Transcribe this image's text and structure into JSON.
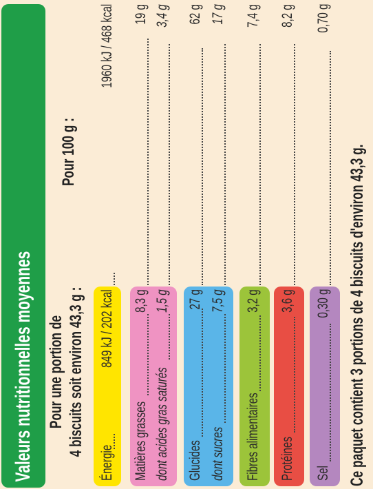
{
  "title": "Valeurs nutritionnelles moyennes",
  "portion_header": {
    "line1": "Pour une portion de",
    "line2": "4 biscuits soit environ 43,3 g :"
  },
  "per100_header": "Pour 100 g :",
  "colors": {
    "title_bg": "#1f9e48",
    "energie": "#ffe500",
    "matieres_grasses": "#ef93c2",
    "glucides": "#5ab5e8",
    "fibres": "#9cc43a",
    "proteines": "#e84e44",
    "sel": "#b487bf",
    "background": "#fbecd6"
  },
  "rows": [
    {
      "key": "energie",
      "label": "Énergie",
      "portion": "849 kJ / 202 kcal",
      "per100": "1960 kJ / 468 kcal"
    },
    {
      "key": "matieres_grasses",
      "label": "Matières grasses",
      "portion": "8,3 g",
      "per100": "19 g"
    },
    {
      "key": "acides_gras_satures",
      "label": "dont acides gras saturés",
      "portion": "1,5 g",
      "per100": "3,4 g"
    },
    {
      "key": "glucides",
      "label": "Glucides",
      "portion": "27 g",
      "per100": "62 g"
    },
    {
      "key": "sucres",
      "label": "dont sucres",
      "portion": "7,5 g",
      "per100": "17 g"
    },
    {
      "key": "fibres",
      "label": "Fibres alimentaires",
      "portion": "3,2 g",
      "per100": "7,4 g"
    },
    {
      "key": "proteines",
      "label": "Protéines",
      "portion": "3,6 g",
      "per100": "8,2 g"
    },
    {
      "key": "sel",
      "label": "Sel",
      "portion": "0,30 g",
      "per100": "0,70 g"
    }
  ],
  "footer": "Ce paquet contient 3 portions de 4 biscuits d'environ 43,3 g."
}
